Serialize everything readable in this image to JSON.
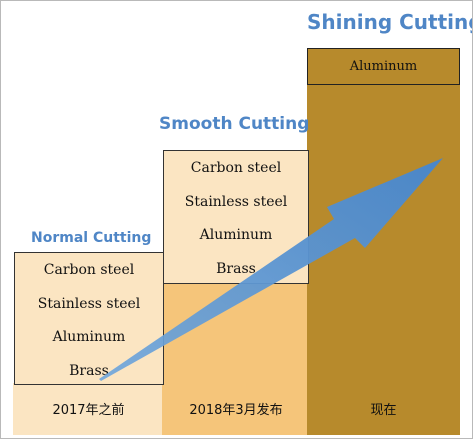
{
  "stages": [
    {
      "title": "Normal Cutting",
      "materials": [
        "Carbon steel",
        "Stainless steel",
        "Aluminum",
        "Brass"
      ],
      "period": "2017年之前",
      "color": "#fbe5c2"
    },
    {
      "title": "Smooth Cutting",
      "materials": [
        "Carbon steel",
        "Stainless steel",
        "Aluminum",
        "Brass"
      ],
      "period": "2018年3月发布",
      "color": "#f5c57a"
    },
    {
      "title": "Shining Cutting",
      "materials": [
        "Aluminum"
      ],
      "period": "现在",
      "color": "#b78a2c"
    }
  ],
  "colors": {
    "title": "#4f86c6",
    "arrow": "#5b95d1"
  },
  "icons": {
    "progress_arrow": "upward-diagonal-arrow-icon"
  }
}
